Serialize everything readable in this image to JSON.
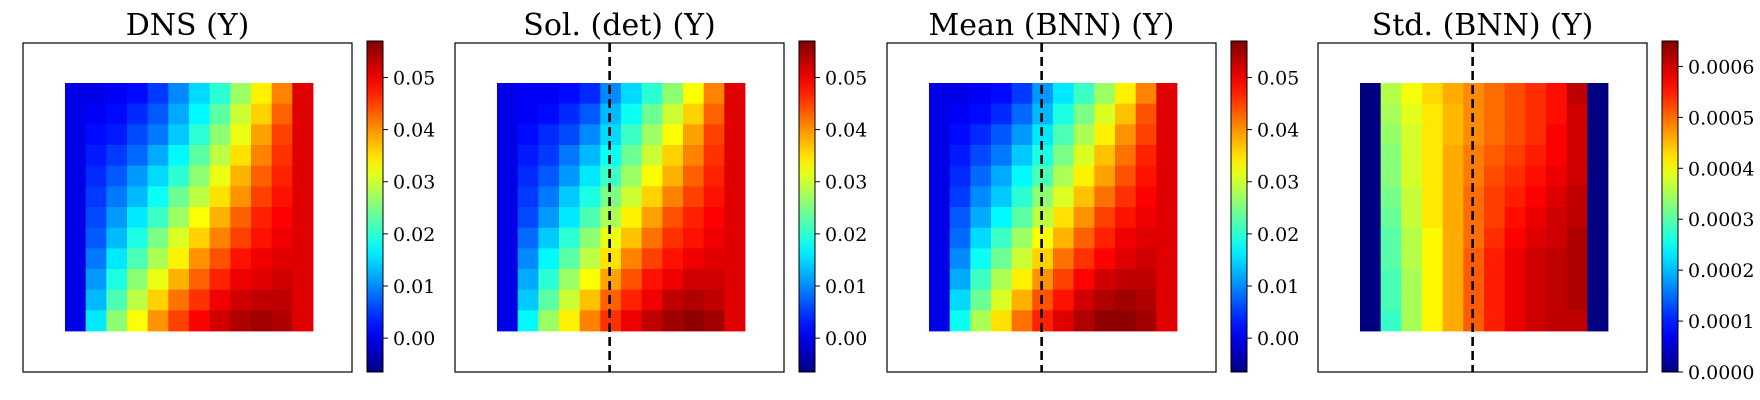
{
  "chart_data": [
    {
      "type": "heatmap",
      "title": "DNS (Y)",
      "grid": false,
      "dashed_vertical_line": false,
      "colorbar": {
        "min": -0.0065,
        "max": 0.057,
        "ticks": [
          "0.00",
          "0.01",
          "0.02",
          "0.03",
          "0.04",
          "0.05"
        ],
        "tick_values": [
          0.0,
          0.01,
          0.02,
          0.03,
          0.04,
          0.05
        ]
      },
      "matrix": [
        [
          0.0,
          0.0,
          0.001,
          0.002,
          0.005,
          0.01,
          0.015,
          0.02,
          0.027,
          0.034,
          0.041,
          0.051
        ],
        [
          0.0,
          0.001,
          0.002,
          0.004,
          0.007,
          0.012,
          0.017,
          0.023,
          0.03,
          0.036,
          0.043,
          0.051
        ],
        [
          0.0,
          0.002,
          0.003,
          0.006,
          0.009,
          0.014,
          0.02,
          0.026,
          0.032,
          0.039,
          0.045,
          0.051
        ],
        [
          0.0,
          0.003,
          0.005,
          0.008,
          0.012,
          0.017,
          0.023,
          0.029,
          0.035,
          0.041,
          0.046,
          0.051
        ],
        [
          0.0,
          0.004,
          0.007,
          0.011,
          0.015,
          0.02,
          0.026,
          0.032,
          0.038,
          0.043,
          0.047,
          0.051
        ],
        [
          0.0,
          0.005,
          0.009,
          0.013,
          0.018,
          0.024,
          0.029,
          0.035,
          0.04,
          0.045,
          0.048,
          0.051
        ],
        [
          0.0,
          0.006,
          0.011,
          0.016,
          0.021,
          0.027,
          0.033,
          0.038,
          0.043,
          0.047,
          0.049,
          0.051
        ],
        [
          0.0,
          0.007,
          0.013,
          0.019,
          0.025,
          0.031,
          0.036,
          0.041,
          0.045,
          0.048,
          0.05,
          0.051
        ],
        [
          0.0,
          0.009,
          0.016,
          0.022,
          0.028,
          0.034,
          0.04,
          0.044,
          0.048,
          0.05,
          0.051,
          0.051
        ],
        [
          0.0,
          0.011,
          0.019,
          0.026,
          0.032,
          0.038,
          0.043,
          0.047,
          0.05,
          0.051,
          0.052,
          0.051
        ],
        [
          0.0,
          0.013,
          0.022,
          0.029,
          0.036,
          0.042,
          0.046,
          0.05,
          0.052,
          0.053,
          0.053,
          0.051
        ],
        [
          0.0,
          0.016,
          0.026,
          0.033,
          0.04,
          0.045,
          0.049,
          0.052,
          0.054,
          0.055,
          0.054,
          0.051
        ]
      ]
    },
    {
      "type": "heatmap",
      "title": "Sol. (det) (Y)",
      "grid": false,
      "dashed_vertical_line": true,
      "colorbar": {
        "min": -0.0065,
        "max": 0.057,
        "ticks": [
          "0.00",
          "0.01",
          "0.02",
          "0.03",
          "0.04",
          "0.05"
        ],
        "tick_values": [
          0.0,
          0.01,
          0.02,
          0.03,
          0.04,
          0.05
        ]
      },
      "matrix": [
        [
          0.0,
          0.001,
          0.001,
          0.002,
          0.004,
          0.01,
          0.015,
          0.02,
          0.026,
          0.033,
          0.041,
          0.051
        ],
        [
          0.0,
          0.001,
          0.002,
          0.004,
          0.007,
          0.013,
          0.018,
          0.024,
          0.03,
          0.036,
          0.043,
          0.051
        ],
        [
          0.0,
          0.002,
          0.004,
          0.006,
          0.01,
          0.015,
          0.021,
          0.027,
          0.033,
          0.039,
          0.045,
          0.051
        ],
        [
          0.0,
          0.003,
          0.005,
          0.009,
          0.013,
          0.018,
          0.024,
          0.03,
          0.036,
          0.041,
          0.046,
          0.051
        ],
        [
          0.0,
          0.004,
          0.007,
          0.011,
          0.016,
          0.021,
          0.027,
          0.033,
          0.038,
          0.043,
          0.047,
          0.051
        ],
        [
          0.0,
          0.005,
          0.009,
          0.014,
          0.019,
          0.025,
          0.03,
          0.036,
          0.041,
          0.045,
          0.048,
          0.051
        ],
        [
          0.0,
          0.006,
          0.011,
          0.016,
          0.022,
          0.028,
          0.034,
          0.039,
          0.044,
          0.047,
          0.049,
          0.051
        ],
        [
          0.0,
          0.008,
          0.014,
          0.02,
          0.026,
          0.032,
          0.037,
          0.042,
          0.046,
          0.048,
          0.05,
          0.051
        ],
        [
          0.0,
          0.01,
          0.017,
          0.023,
          0.029,
          0.035,
          0.041,
          0.045,
          0.048,
          0.05,
          0.051,
          0.051
        ],
        [
          0.0,
          0.012,
          0.02,
          0.027,
          0.033,
          0.039,
          0.044,
          0.048,
          0.05,
          0.052,
          0.052,
          0.051
        ],
        [
          0.0,
          0.014,
          0.023,
          0.03,
          0.037,
          0.043,
          0.047,
          0.05,
          0.053,
          0.054,
          0.053,
          0.051
        ],
        [
          0.0,
          0.017,
          0.027,
          0.034,
          0.041,
          0.046,
          0.05,
          0.053,
          0.055,
          0.056,
          0.055,
          0.051
        ]
      ]
    },
    {
      "type": "heatmap",
      "title": "Mean (BNN) (Y)",
      "grid": false,
      "dashed_vertical_line": true,
      "colorbar": {
        "min": -0.0065,
        "max": 0.057,
        "ticks": [
          "0.00",
          "0.01",
          "0.02",
          "0.03",
          "0.04",
          "0.05"
        ],
        "tick_values": [
          0.0,
          0.01,
          0.02,
          0.03,
          0.04,
          0.05
        ]
      },
      "matrix": [
        [
          0.0,
          0.0,
          0.001,
          0.002,
          0.005,
          0.011,
          0.016,
          0.021,
          0.027,
          0.034,
          0.041,
          0.051
        ],
        [
          0.0,
          0.001,
          0.002,
          0.004,
          0.008,
          0.013,
          0.019,
          0.025,
          0.031,
          0.037,
          0.044,
          0.051
        ],
        [
          0.0,
          0.002,
          0.004,
          0.007,
          0.011,
          0.016,
          0.022,
          0.028,
          0.034,
          0.04,
          0.045,
          0.051
        ],
        [
          0.0,
          0.003,
          0.006,
          0.009,
          0.014,
          0.019,
          0.025,
          0.031,
          0.037,
          0.042,
          0.047,
          0.051
        ],
        [
          0.0,
          0.004,
          0.008,
          0.012,
          0.017,
          0.022,
          0.028,
          0.034,
          0.039,
          0.044,
          0.048,
          0.051
        ],
        [
          0.0,
          0.005,
          0.01,
          0.014,
          0.02,
          0.026,
          0.031,
          0.037,
          0.042,
          0.046,
          0.049,
          0.051
        ],
        [
          0.0,
          0.007,
          0.012,
          0.017,
          0.023,
          0.029,
          0.035,
          0.04,
          0.045,
          0.048,
          0.05,
          0.051
        ],
        [
          0.0,
          0.008,
          0.015,
          0.021,
          0.027,
          0.033,
          0.038,
          0.043,
          0.047,
          0.05,
          0.051,
          0.051
        ],
        [
          0.0,
          0.01,
          0.018,
          0.024,
          0.03,
          0.036,
          0.042,
          0.046,
          0.049,
          0.051,
          0.052,
          0.051
        ],
        [
          0.0,
          0.012,
          0.021,
          0.028,
          0.034,
          0.04,
          0.045,
          0.049,
          0.052,
          0.053,
          0.053,
          0.051
        ],
        [
          0.0,
          0.015,
          0.024,
          0.031,
          0.038,
          0.044,
          0.048,
          0.052,
          0.054,
          0.055,
          0.054,
          0.051
        ],
        [
          0.0,
          0.018,
          0.028,
          0.035,
          0.042,
          0.047,
          0.051,
          0.054,
          0.056,
          0.056,
          0.055,
          0.051
        ]
      ]
    },
    {
      "type": "heatmap",
      "title": "Std. (BNN) (Y)",
      "grid": false,
      "dashed_vertical_line": true,
      "colorbar": {
        "min": 0.0,
        "max": 0.00065,
        "ticks": [
          "0.0000",
          "0.0001",
          "0.0002",
          "0.0003",
          "0.0004",
          "0.0005",
          "0.0006"
        ],
        "tick_values": [
          0.0,
          0.0001,
          0.0002,
          0.0003,
          0.0004,
          0.0005,
          0.0006
        ]
      },
      "matrix": [
        [
          0.0,
          0.00036,
          0.0004,
          0.00043,
          0.00046,
          0.00048,
          0.0005,
          0.00052,
          0.00054,
          0.00056,
          0.00061,
          0.0
        ],
        [
          0.0,
          0.00035,
          0.00039,
          0.00042,
          0.00045,
          0.00048,
          0.0005,
          0.00052,
          0.00054,
          0.00056,
          0.0006,
          0.0
        ],
        [
          0.0,
          0.00034,
          0.00038,
          0.00042,
          0.00045,
          0.00048,
          0.0005,
          0.00052,
          0.00054,
          0.00057,
          0.0006,
          0.0
        ],
        [
          0.0,
          0.00033,
          0.00038,
          0.00042,
          0.00046,
          0.00049,
          0.00051,
          0.00053,
          0.00055,
          0.00057,
          0.0006,
          0.0
        ],
        [
          0.0,
          0.00033,
          0.00038,
          0.00042,
          0.00046,
          0.00049,
          0.00052,
          0.00054,
          0.00056,
          0.00058,
          0.0006,
          0.0
        ],
        [
          0.0,
          0.00032,
          0.00037,
          0.00042,
          0.00046,
          0.0005,
          0.00053,
          0.00055,
          0.00057,
          0.00059,
          0.00061,
          0.0
        ],
        [
          0.0,
          0.00031,
          0.00037,
          0.00042,
          0.00046,
          0.0005,
          0.00053,
          0.00056,
          0.00058,
          0.0006,
          0.00061,
          0.0
        ],
        [
          0.0,
          0.0003,
          0.00036,
          0.00041,
          0.00046,
          0.0005,
          0.00054,
          0.00057,
          0.00059,
          0.0006,
          0.00062,
          0.0
        ],
        [
          0.0,
          0.0003,
          0.00036,
          0.00041,
          0.00046,
          0.00051,
          0.00055,
          0.00058,
          0.0006,
          0.00061,
          0.00062,
          0.0
        ],
        [
          0.0,
          0.00029,
          0.00035,
          0.00041,
          0.00046,
          0.00051,
          0.00055,
          0.00058,
          0.0006,
          0.00061,
          0.00062,
          0.0
        ],
        [
          0.0,
          0.00029,
          0.00035,
          0.00041,
          0.00046,
          0.00051,
          0.00055,
          0.00058,
          0.0006,
          0.00061,
          0.00062,
          0.0
        ],
        [
          0.0,
          0.00028,
          0.00035,
          0.00041,
          0.00046,
          0.00051,
          0.00055,
          0.00058,
          0.0006,
          0.00061,
          0.00061,
          0.0
        ]
      ]
    }
  ]
}
